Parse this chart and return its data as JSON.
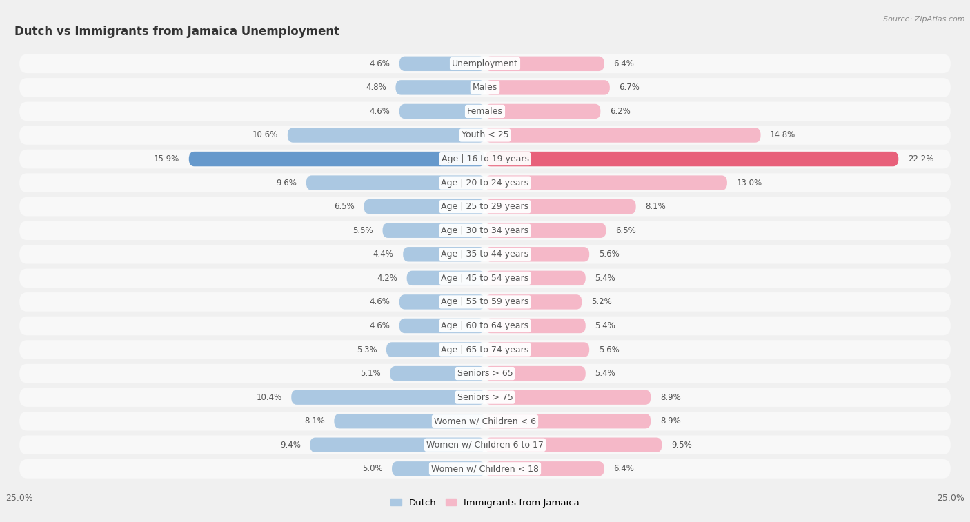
{
  "title": "Dutch vs Immigrants from Jamaica Unemployment",
  "source": "Source: ZipAtlas.com",
  "categories": [
    "Unemployment",
    "Males",
    "Females",
    "Youth < 25",
    "Age | 16 to 19 years",
    "Age | 20 to 24 years",
    "Age | 25 to 29 years",
    "Age | 30 to 34 years",
    "Age | 35 to 44 years",
    "Age | 45 to 54 years",
    "Age | 55 to 59 years",
    "Age | 60 to 64 years",
    "Age | 65 to 74 years",
    "Seniors > 65",
    "Seniors > 75",
    "Women w/ Children < 6",
    "Women w/ Children 6 to 17",
    "Women w/ Children < 18"
  ],
  "dutch_values": [
    4.6,
    4.8,
    4.6,
    10.6,
    15.9,
    9.6,
    6.5,
    5.5,
    4.4,
    4.2,
    4.6,
    4.6,
    5.3,
    5.1,
    10.4,
    8.1,
    9.4,
    5.0
  ],
  "jamaica_values": [
    6.4,
    6.7,
    6.2,
    14.8,
    22.2,
    13.0,
    8.1,
    6.5,
    5.6,
    5.4,
    5.2,
    5.4,
    5.6,
    5.4,
    8.9,
    8.9,
    9.5,
    6.4
  ],
  "dutch_color": "#abc8e2",
  "jamaica_color": "#f5b8c8",
  "dutch_highlight_color": "#6699cc",
  "jamaica_highlight_color": "#e8607a",
  "axis_limit": 25.0,
  "bar_height": 0.62,
  "bg_color": "#f0f0f0",
  "row_color": "#f8f8f8",
  "row_shadow_color": "#e0e0e0",
  "label_fontsize": 9.0,
  "title_fontsize": 12,
  "value_fontsize": 8.5,
  "legend_dutch": "Dutch",
  "legend_jamaica": "Immigrants from Jamaica"
}
